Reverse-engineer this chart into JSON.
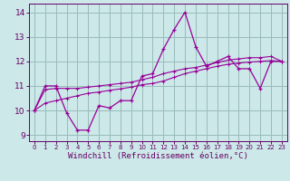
{
  "x": [
    0,
    1,
    2,
    3,
    4,
    5,
    6,
    7,
    8,
    9,
    10,
    11,
    12,
    13,
    14,
    15,
    16,
    17,
    18,
    19,
    20,
    21,
    22,
    23
  ],
  "y_main": [
    10.0,
    11.0,
    11.0,
    9.9,
    9.2,
    9.2,
    10.2,
    10.1,
    10.4,
    10.4,
    11.4,
    11.5,
    12.5,
    13.3,
    14.0,
    12.6,
    11.8,
    12.0,
    12.2,
    11.7,
    11.7,
    10.9,
    12.0,
    12.0
  ],
  "y_trend1": [
    10.0,
    10.85,
    10.9,
    10.9,
    10.9,
    10.95,
    11.0,
    11.05,
    11.1,
    11.15,
    11.25,
    11.35,
    11.5,
    11.6,
    11.7,
    11.75,
    11.85,
    11.95,
    12.05,
    12.1,
    12.15,
    12.15,
    12.2,
    12.0
  ],
  "y_trend2": [
    10.0,
    10.3,
    10.4,
    10.5,
    10.6,
    10.7,
    10.75,
    10.82,
    10.88,
    10.95,
    11.05,
    11.1,
    11.2,
    11.35,
    11.5,
    11.6,
    11.7,
    11.8,
    11.88,
    11.93,
    11.97,
    12.0,
    12.03,
    12.0
  ],
  "line_color": "#990099",
  "bg_color": "#cce8e8",
  "grid_color": "#99bbbb",
  "ylim": [
    8.75,
    14.35
  ],
  "yticks": [
    9,
    10,
    11,
    12,
    13,
    14
  ],
  "xlim": [
    -0.5,
    23.5
  ],
  "xlabel": "Windchill (Refroidissement éolien,°C)",
  "xlabel_fontsize": 6.5
}
